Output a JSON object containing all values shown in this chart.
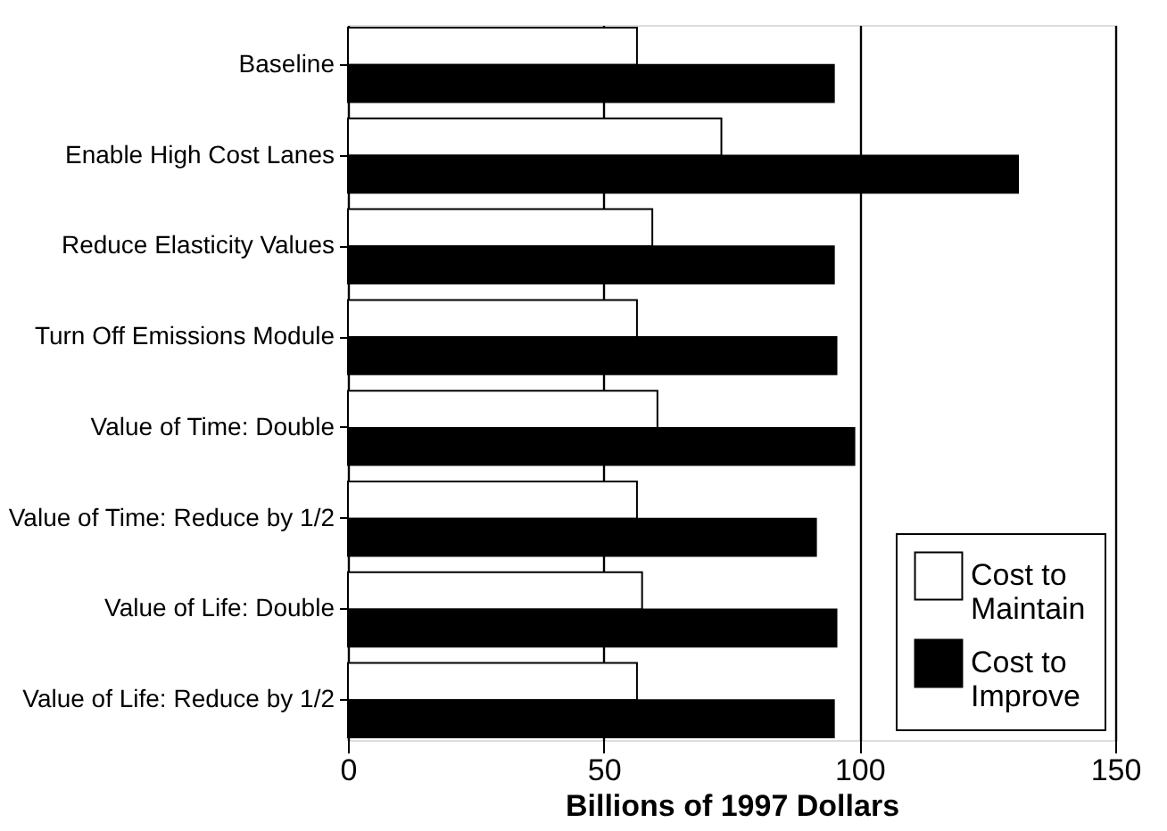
{
  "chart_data": {
    "type": "bar",
    "orientation": "horizontal",
    "xlabel": "Billions of 1997 Dollars",
    "categories": [
      "Baseline",
      "Enable High Cost Lanes",
      "Reduce Elasticity Values",
      "Turn Off Emissions Module",
      "Value of Time: Double",
      "Value of Time: Reduce by 1/2",
      "Value of Life: Double",
      "Value of Life: Reduce by 1/2"
    ],
    "series": [
      {
        "name": "Cost to Maintain",
        "color": "#ffffff",
        "values": [
          56.5,
          73,
          59.5,
          56.5,
          60.5,
          56.5,
          57.5,
          56.5
        ]
      },
      {
        "name": "Cost to Improve",
        "color": "#000000",
        "values": [
          95,
          131,
          95,
          95.5,
          99,
          91.5,
          95.5,
          95
        ]
      }
    ],
    "xlim": [
      0,
      150
    ],
    "xticks": [
      0,
      50,
      100,
      150
    ],
    "grid": "x",
    "legend": "bottom right"
  }
}
